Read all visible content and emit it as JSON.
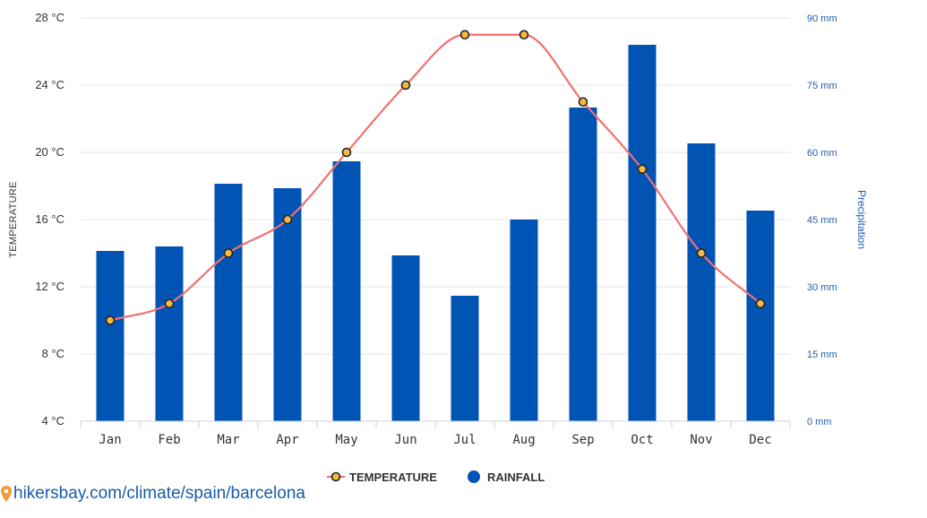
{
  "chart_data": {
    "type": "bar",
    "categories": [
      "Jan",
      "Feb",
      "Mar",
      "Apr",
      "May",
      "Jun",
      "Jul",
      "Aug",
      "Sep",
      "Oct",
      "Nov",
      "Dec"
    ],
    "series": [
      {
        "name": "TEMPERATURE",
        "type": "line",
        "axis": "left",
        "color": "#f07070",
        "marker_fill": "#f5b942",
        "values": [
          10,
          11,
          14,
          16,
          20,
          24,
          27,
          27,
          23,
          19,
          14,
          11
        ]
      },
      {
        "name": "RAINFALL",
        "type": "bar",
        "axis": "right",
        "color": "#0054b4",
        "values": [
          38,
          39,
          53,
          52,
          58,
          37,
          28,
          45,
          70,
          84,
          62,
          47
        ]
      }
    ],
    "ylabel": "TEMPERATURE",
    "ylabel_right": "Precipitation",
    "ylim": [
      4,
      28
    ],
    "ylim_right": [
      0,
      90
    ],
    "yticks": [
      "4 °C",
      "8 °C",
      "12 °C",
      "16 °C",
      "20 °C",
      "24 °C",
      "28 °C"
    ],
    "yticks_values": [
      4,
      8,
      12,
      16,
      20,
      24,
      28
    ],
    "yticks_right": [
      "0 mm",
      "15 mm",
      "30 mm",
      "45 mm",
      "60 mm",
      "75 mm",
      "90 mm"
    ],
    "yticks_right_values": [
      0,
      15,
      30,
      45,
      60,
      75,
      90
    ],
    "grid": true,
    "legend_position": "bottom-center"
  },
  "credit": {
    "text": "hikersbay.com/climate/spain/barcelona",
    "icon": "map-pin-icon"
  }
}
